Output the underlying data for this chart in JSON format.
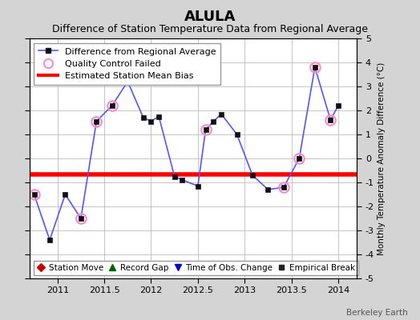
{
  "title": "ALULA",
  "subtitle": "Difference of Station Temperature Data from Regional Average",
  "ylabel_right": "Monthly Temperature Anomaly Difference (°C)",
  "xlim": [
    2010.7,
    2014.2
  ],
  "ylim": [
    -5,
    5
  ],
  "yticks": [
    -5,
    -4,
    -3,
    -2,
    -1,
    0,
    1,
    2,
    3,
    4,
    5
  ],
  "xticks": [
    2011,
    2011.5,
    2012,
    2012.5,
    2013,
    2013.5,
    2014
  ],
  "xtick_labels": [
    "2011",
    "2011.5",
    "2012",
    "2012.5",
    "2013",
    "2013.5",
    "2014"
  ],
  "bias_level": -0.65,
  "line_color": "#5555ff",
  "bias_color": "#ff0000",
  "qc_edge_color": "#ff88cc",
  "fig_bg_color": "#d4d4d4",
  "plot_bg_color": "#ffffff",
  "grid_color": "#bbbbbb",
  "title_fontsize": 13,
  "subtitle_fontsize": 9,
  "tick_fontsize": 8,
  "legend1_fontsize": 8,
  "legend2_fontsize": 7.5,
  "berkeley_fontsize": 7.5,
  "time_x": [
    2010.75,
    2010.917,
    2011.083,
    2011.25,
    2011.417,
    2011.583,
    2011.75,
    2011.917,
    2012.0,
    2012.083,
    2012.25,
    2012.333,
    2012.5,
    2012.583,
    2012.667,
    2012.75,
    2012.917,
    2013.083,
    2013.25,
    2013.417,
    2013.583,
    2013.75,
    2013.917,
    2014.0
  ],
  "values_y": [
    -1.5,
    -3.4,
    -1.5,
    -2.5,
    1.55,
    2.2,
    3.2,
    1.7,
    1.55,
    1.75,
    -0.75,
    -0.9,
    -1.15,
    1.2,
    1.55,
    1.85,
    1.0,
    -0.7,
    -1.3,
    -1.2,
    0.0,
    3.8,
    1.6,
    2.2
  ],
  "qc_x": [
    2010.75,
    2011.25,
    2011.417,
    2011.583,
    2012.583,
    2013.417,
    2013.583,
    2013.75,
    2013.917
  ],
  "qc_y": [
    -1.5,
    -2.5,
    1.55,
    2.2,
    1.2,
    -1.2,
    0.0,
    3.8,
    1.6
  ]
}
